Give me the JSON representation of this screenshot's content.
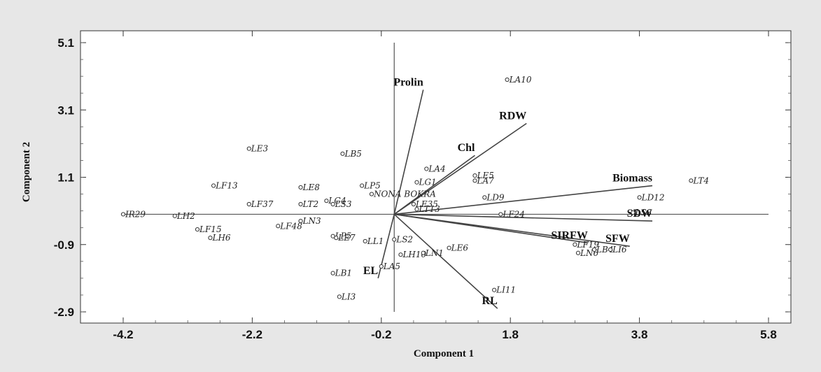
{
  "chart_data": {
    "type": "scatter",
    "subtype": "biplot",
    "title": "",
    "xlabel": "Component 1",
    "ylabel": "Component 2",
    "xlim": [
      -4.2,
      5.8
    ],
    "ylim": [
      -2.9,
      5.1
    ],
    "xticks": [
      "-4.2",
      "-2.2",
      "-0.2",
      "1.8",
      "3.8",
      "5.8"
    ],
    "yticks": [
      "5.1",
      "3.1",
      "1.1",
      "-0.9",
      "-2.9"
    ],
    "xtick_values": [
      -4.2,
      -2.2,
      -0.2,
      1.8,
      3.8,
      5.8
    ],
    "ytick_values": [
      5.1,
      3.1,
      1.1,
      -0.9,
      -2.9
    ],
    "colors": {
      "background": "#e7e7e7",
      "plot": "#ffffff",
      "ink": "#222222"
    },
    "variables": [
      {
        "label": "Prolin",
        "x": 0.45,
        "y": 3.7
      },
      {
        "label": "RDW",
        "x": 2.05,
        "y": 2.7
      },
      {
        "label": "Chl",
        "x": 1.25,
        "y": 1.75
      },
      {
        "label": "Biomass",
        "x": 4.0,
        "y": 0.85
      },
      {
        "label": "SDW",
        "x": 4.0,
        "y": -0.2
      },
      {
        "label": "SFW",
        "x": 3.65,
        "y": -0.95
      },
      {
        "label": "SIRFW",
        "x": 3.0,
        "y": -0.85
      },
      {
        "label": "EL",
        "x": -0.25,
        "y": -1.9
      },
      {
        "label": "RL",
        "x": 1.6,
        "y": -2.8
      }
    ],
    "points": [
      {
        "label": "LA10",
        "x": 1.75,
        "y": 4.0
      },
      {
        "label": "LE3",
        "x": -2.25,
        "y": 1.95
      },
      {
        "label": "LB5",
        "x": -0.8,
        "y": 1.8
      },
      {
        "label": "LF13",
        "x": -2.8,
        "y": 0.85
      },
      {
        "label": "LE8",
        "x": -1.45,
        "y": 0.8
      },
      {
        "label": "LP5",
        "x": -0.5,
        "y": 0.85
      },
      {
        "label": "NONA BOKRA",
        "x": -0.35,
        "y": 0.6
      },
      {
        "label": "LA4",
        "x": 0.5,
        "y": 1.35
      },
      {
        "label": "LG1",
        "x": 0.35,
        "y": 0.95
      },
      {
        "label": "LE5",
        "x": 1.25,
        "y": 1.15
      },
      {
        "label": "LA7",
        "x": 1.25,
        "y": 1.0
      },
      {
        "label": "LT4",
        "x": 4.6,
        "y": 1.0
      },
      {
        "label": "LD9",
        "x": 1.4,
        "y": 0.5
      },
      {
        "label": "LD12",
        "x": 3.8,
        "y": 0.5
      },
      {
        "label": "LF37",
        "x": -2.25,
        "y": 0.3
      },
      {
        "label": "LT2",
        "x": -1.45,
        "y": 0.3
      },
      {
        "label": "LG4",
        "x": -1.05,
        "y": 0.4
      },
      {
        "label": "LS3",
        "x": -0.95,
        "y": 0.3
      },
      {
        "label": "LE35",
        "x": 0.3,
        "y": 0.3
      },
      {
        "label": "LT13",
        "x": 0.35,
        "y": 0.15
      },
      {
        "label": "LF24",
        "x": 1.65,
        "y": 0.0
      },
      {
        "label": "LS8",
        "x": 3.7,
        "y": 0.05
      },
      {
        "label": "IR29",
        "x": -4.2,
        "y": 0.0
      },
      {
        "label": "LH2",
        "x": -3.4,
        "y": -0.05
      },
      {
        "label": "LN3",
        "x": -1.45,
        "y": -0.2
      },
      {
        "label": "LF48",
        "x": -1.8,
        "y": -0.35
      },
      {
        "label": "LF15",
        "x": -3.05,
        "y": -0.45
      },
      {
        "label": "LH6",
        "x": -2.85,
        "y": -0.7
      },
      {
        "label": "LP5",
        "x": -0.95,
        "y": -0.65
      },
      {
        "label": "LE7",
        "x": -0.9,
        "y": -0.7
      },
      {
        "label": "LL1",
        "x": -0.45,
        "y": -0.8
      },
      {
        "label": "LS2",
        "x": 0.0,
        "y": -0.75
      },
      {
        "label": "LE6",
        "x": 0.85,
        "y": -1.0
      },
      {
        "label": "LH10",
        "x": 0.1,
        "y": -1.2
      },
      {
        "label": "LN1",
        "x": 0.45,
        "y": -1.15
      },
      {
        "label": "LA5",
        "x": -0.2,
        "y": -1.55
      },
      {
        "label": "LB1",
        "x": -0.95,
        "y": -1.75
      },
      {
        "label": "LI3",
        "x": -0.85,
        "y": -2.45
      },
      {
        "label": "LI11",
        "x": 1.55,
        "y": -2.25
      },
      {
        "label": "LF19",
        "x": 2.8,
        "y": -0.9
      },
      {
        "label": "LN6",
        "x": 2.85,
        "y": -1.15
      },
      {
        "label": "LB4",
        "x": 3.1,
        "y": -1.05
      },
      {
        "label": "LI6",
        "x": 3.35,
        "y": -1.05
      }
    ],
    "grid": false,
    "legend": "none"
  }
}
